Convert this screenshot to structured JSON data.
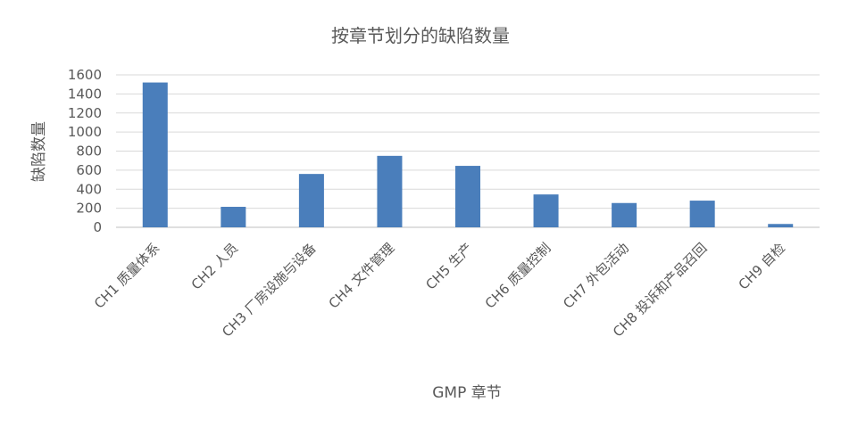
{
  "chart_data": {
    "type": "bar",
    "title": "按章节划分的缺陷数量",
    "xlabel": "GMP 章节",
    "ylabel": "缺陷数量",
    "categories": [
      "CH1 质量体系",
      "CH2 人员",
      "CH3 厂房设施与设备",
      "CH4 文件管理",
      "CH5 生产",
      "CH6 质量控制",
      "CH7 外包活动",
      "CH8 投诉和产品召回",
      "CH9 自检"
    ],
    "values": [
      1520,
      215,
      560,
      750,
      645,
      345,
      255,
      280,
      35
    ],
    "ylim": [
      0,
      1600
    ],
    "yticks": [
      0,
      200,
      400,
      600,
      800,
      1000,
      1200,
      1400,
      1600
    ],
    "grid": true,
    "legend": "none",
    "bar_color": "#4a7ebb"
  }
}
